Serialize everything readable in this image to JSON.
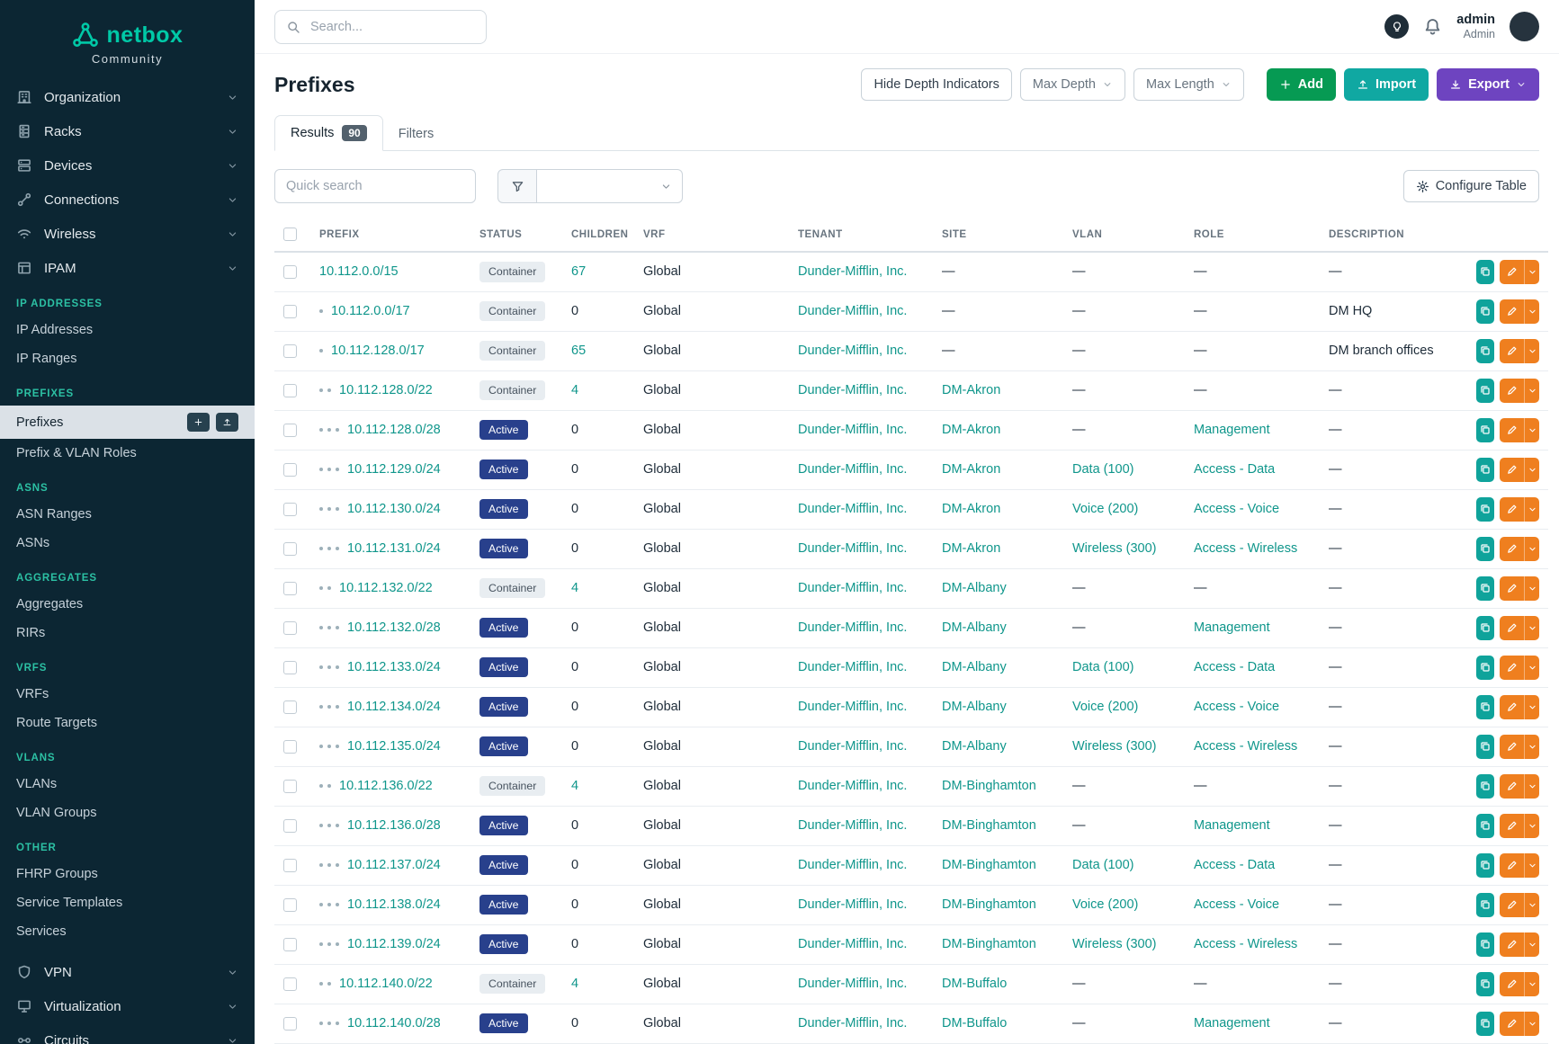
{
  "colors": {
    "brand": "#00c9a7",
    "sidebar_bg": "#0c2633",
    "section_title": "#2cc1a4",
    "link": "#0f968b",
    "status_active_bg": "#28408c",
    "status_container_bg": "#e8edf1",
    "btn_add": "#069a53",
    "btn_import": "#10a8a2",
    "btn_export": "#6e44c0",
    "btn_edit": "#ef7f1f",
    "btn_copy": "#0fa39b"
  },
  "brand": {
    "name": "netbox",
    "subtitle": "Community"
  },
  "topbar": {
    "search_placeholder": "Search...",
    "icons": [
      "search-icon",
      "bulb-icon",
      "bell-icon"
    ],
    "user": {
      "name": "admin",
      "role": "Admin"
    }
  },
  "sidebar": {
    "menu_top": [
      {
        "label": "Organization",
        "icon": "organization-icon"
      },
      {
        "label": "Racks",
        "icon": "racks-icon"
      },
      {
        "label": "Devices",
        "icon": "devices-icon"
      },
      {
        "label": "Connections",
        "icon": "connections-icon"
      },
      {
        "label": "Wireless",
        "icon": "wireless-icon"
      },
      {
        "label": "IPAM",
        "icon": "ipam-icon"
      }
    ],
    "sections": [
      {
        "title": "IP ADDRESSES",
        "items": [
          {
            "label": "IP Addresses"
          },
          {
            "label": "IP Ranges"
          }
        ]
      },
      {
        "title": "PREFIXES",
        "items": [
          {
            "label": "Prefixes",
            "active": true,
            "quick_actions": [
              "plus-icon",
              "upload-icon"
            ]
          },
          {
            "label": "Prefix & VLAN Roles"
          }
        ]
      },
      {
        "title": "ASNS",
        "items": [
          {
            "label": "ASN Ranges"
          },
          {
            "label": "ASNs"
          }
        ]
      },
      {
        "title": "AGGREGATES",
        "items": [
          {
            "label": "Aggregates"
          },
          {
            "label": "RIRs"
          }
        ]
      },
      {
        "title": "VRFS",
        "items": [
          {
            "label": "VRFs"
          },
          {
            "label": "Route Targets"
          }
        ]
      },
      {
        "title": "VLANS",
        "items": [
          {
            "label": "VLANs"
          },
          {
            "label": "VLAN Groups"
          }
        ]
      },
      {
        "title": "OTHER",
        "items": [
          {
            "label": "FHRP Groups"
          },
          {
            "label": "Service Templates"
          },
          {
            "label": "Services"
          }
        ]
      }
    ],
    "menu_bottom": [
      {
        "label": "VPN",
        "icon": "vpn-icon"
      },
      {
        "label": "Virtualization",
        "icon": "virtualization-icon"
      },
      {
        "label": "Circuits",
        "icon": "circuits-icon"
      }
    ]
  },
  "page": {
    "title": "Prefixes",
    "buttons": {
      "hide_depth": "Hide Depth Indicators",
      "max_depth": "Max Depth",
      "max_length": "Max Length",
      "add": "Add",
      "import": "Import",
      "export": "Export"
    },
    "tabs": [
      {
        "label": "Results",
        "badge": "90"
      },
      {
        "label": "Filters"
      }
    ],
    "quick_search_placeholder": "Quick search",
    "configure_table": "Configure Table",
    "toolbar_icons": [
      "plus-icon",
      "upload-icon",
      "download-icon",
      "chevron-down-icon",
      "funnel-icon",
      "gear-icon"
    ],
    "row_action_icons": [
      "copy-icon",
      "pencil-icon",
      "chevron-down-icon"
    ]
  },
  "table": {
    "columns": [
      "PREFIX",
      "STATUS",
      "CHILDREN",
      "VRF",
      "TENANT",
      "SITE",
      "VLAN",
      "ROLE",
      "DESCRIPTION"
    ],
    "rows": [
      {
        "depth": 0,
        "prefix": "10.112.0.0/15",
        "status": "Container",
        "children": "67",
        "vrf": "Global",
        "tenant": "Dunder-Mifflin, Inc.",
        "site": "—",
        "vlan": "—",
        "role": "—",
        "description": "—"
      },
      {
        "depth": 1,
        "prefix": "10.112.0.0/17",
        "status": "Container",
        "children": "0",
        "vrf": "Global",
        "tenant": "Dunder-Mifflin, Inc.",
        "site": "—",
        "vlan": "—",
        "role": "—",
        "description": "DM HQ"
      },
      {
        "depth": 1,
        "prefix": "10.112.128.0/17",
        "status": "Container",
        "children": "65",
        "vrf": "Global",
        "tenant": "Dunder-Mifflin, Inc.",
        "site": "—",
        "vlan": "—",
        "role": "—",
        "description": "DM branch offices"
      },
      {
        "depth": 2,
        "prefix": "10.112.128.0/22",
        "status": "Container",
        "children": "4",
        "vrf": "Global",
        "tenant": "Dunder-Mifflin, Inc.",
        "site": "DM-Akron",
        "vlan": "—",
        "role": "—",
        "description": "—"
      },
      {
        "depth": 3,
        "prefix": "10.112.128.0/28",
        "status": "Active",
        "children": "0",
        "vrf": "Global",
        "tenant": "Dunder-Mifflin, Inc.",
        "site": "DM-Akron",
        "vlan": "—",
        "role": "Management",
        "description": "—"
      },
      {
        "depth": 3,
        "prefix": "10.112.129.0/24",
        "status": "Active",
        "children": "0",
        "vrf": "Global",
        "tenant": "Dunder-Mifflin, Inc.",
        "site": "DM-Akron",
        "vlan": "Data (100)",
        "role": "Access - Data",
        "description": "—"
      },
      {
        "depth": 3,
        "prefix": "10.112.130.0/24",
        "status": "Active",
        "children": "0",
        "vrf": "Global",
        "tenant": "Dunder-Mifflin, Inc.",
        "site": "DM-Akron",
        "vlan": "Voice (200)",
        "role": "Access - Voice",
        "description": "—"
      },
      {
        "depth": 3,
        "prefix": "10.112.131.0/24",
        "status": "Active",
        "children": "0",
        "vrf": "Global",
        "tenant": "Dunder-Mifflin, Inc.",
        "site": "DM-Akron",
        "vlan": "Wireless (300)",
        "role": "Access - Wireless",
        "description": "—"
      },
      {
        "depth": 2,
        "prefix": "10.112.132.0/22",
        "status": "Container",
        "children": "4",
        "vrf": "Global",
        "tenant": "Dunder-Mifflin, Inc.",
        "site": "DM-Albany",
        "vlan": "—",
        "role": "—",
        "description": "—"
      },
      {
        "depth": 3,
        "prefix": "10.112.132.0/28",
        "status": "Active",
        "children": "0",
        "vrf": "Global",
        "tenant": "Dunder-Mifflin, Inc.",
        "site": "DM-Albany",
        "vlan": "—",
        "role": "Management",
        "description": "—"
      },
      {
        "depth": 3,
        "prefix": "10.112.133.0/24",
        "status": "Active",
        "children": "0",
        "vrf": "Global",
        "tenant": "Dunder-Mifflin, Inc.",
        "site": "DM-Albany",
        "vlan": "Data (100)",
        "role": "Access - Data",
        "description": "—"
      },
      {
        "depth": 3,
        "prefix": "10.112.134.0/24",
        "status": "Active",
        "children": "0",
        "vrf": "Global",
        "tenant": "Dunder-Mifflin, Inc.",
        "site": "DM-Albany",
        "vlan": "Voice (200)",
        "role": "Access - Voice",
        "description": "—"
      },
      {
        "depth": 3,
        "prefix": "10.112.135.0/24",
        "status": "Active",
        "children": "0",
        "vrf": "Global",
        "tenant": "Dunder-Mifflin, Inc.",
        "site": "DM-Albany",
        "vlan": "Wireless (300)",
        "role": "Access - Wireless",
        "description": "—"
      },
      {
        "depth": 2,
        "prefix": "10.112.136.0/22",
        "status": "Container",
        "children": "4",
        "vrf": "Global",
        "tenant": "Dunder-Mifflin, Inc.",
        "site": "DM-Binghamton",
        "vlan": "—",
        "role": "—",
        "description": "—"
      },
      {
        "depth": 3,
        "prefix": "10.112.136.0/28",
        "status": "Active",
        "children": "0",
        "vrf": "Global",
        "tenant": "Dunder-Mifflin, Inc.",
        "site": "DM-Binghamton",
        "vlan": "—",
        "role": "Management",
        "description": "—"
      },
      {
        "depth": 3,
        "prefix": "10.112.137.0/24",
        "status": "Active",
        "children": "0",
        "vrf": "Global",
        "tenant": "Dunder-Mifflin, Inc.",
        "site": "DM-Binghamton",
        "vlan": "Data (100)",
        "role": "Access - Data",
        "description": "—"
      },
      {
        "depth": 3,
        "prefix": "10.112.138.0/24",
        "status": "Active",
        "children": "0",
        "vrf": "Global",
        "tenant": "Dunder-Mifflin, Inc.",
        "site": "DM-Binghamton",
        "vlan": "Voice (200)",
        "role": "Access - Voice",
        "description": "—"
      },
      {
        "depth": 3,
        "prefix": "10.112.139.0/24",
        "status": "Active",
        "children": "0",
        "vrf": "Global",
        "tenant": "Dunder-Mifflin, Inc.",
        "site": "DM-Binghamton",
        "vlan": "Wireless (300)",
        "role": "Access - Wireless",
        "description": "—"
      },
      {
        "depth": 2,
        "prefix": "10.112.140.0/22",
        "status": "Container",
        "children": "4",
        "vrf": "Global",
        "tenant": "Dunder-Mifflin, Inc.",
        "site": "DM-Buffalo",
        "vlan": "—",
        "role": "—",
        "description": "—"
      },
      {
        "depth": 3,
        "prefix": "10.112.140.0/28",
        "status": "Active",
        "children": "0",
        "vrf": "Global",
        "tenant": "Dunder-Mifflin, Inc.",
        "site": "DM-Buffalo",
        "vlan": "—",
        "role": "Management",
        "description": "—"
      }
    ]
  }
}
